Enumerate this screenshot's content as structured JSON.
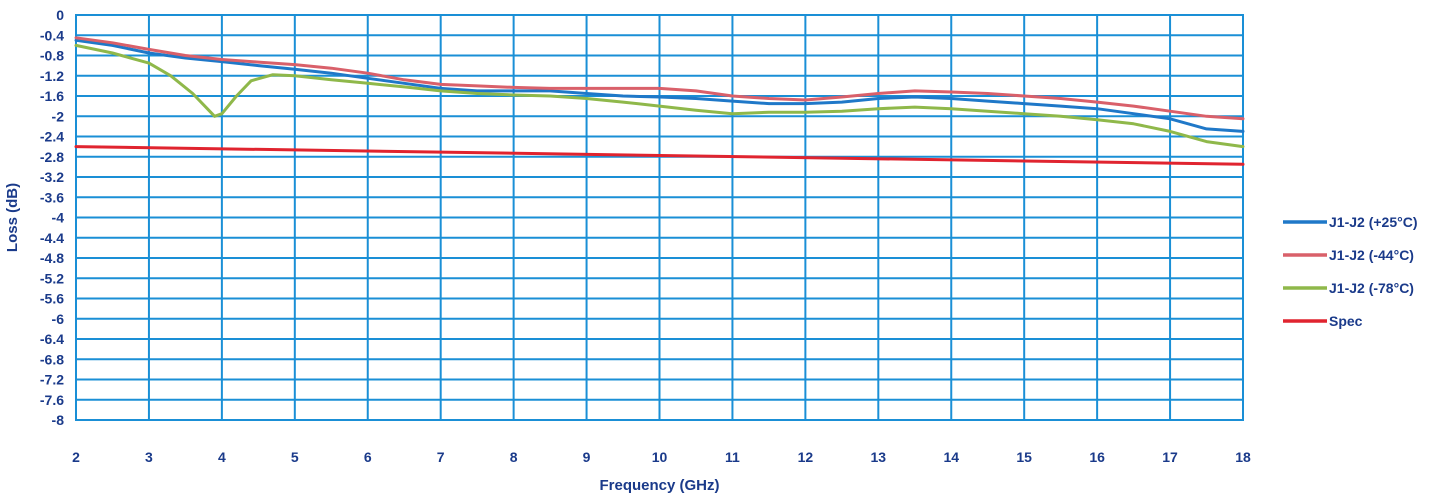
{
  "chart_data": {
    "type": "line",
    "title": "",
    "xlabel": "Frequency (GHz)",
    "ylabel": "Loss (dB)",
    "xlim": [
      2,
      18
    ],
    "ylim": [
      -8,
      0
    ],
    "x_ticks": [
      "2",
      "3",
      "4",
      "5",
      "6",
      "7",
      "8",
      "9",
      "10",
      "11",
      "12",
      "13",
      "14",
      "15",
      "16",
      "17",
      "18"
    ],
    "y_ticks": [
      "0",
      "-0.4",
      "-0.8",
      "-1.2",
      "-1.6",
      "-2",
      "-2.4",
      "-2.8",
      "-3.2",
      "-3.6",
      "-4",
      "-4.4",
      "-4.8",
      "-5.2",
      "-5.6",
      "-6",
      "-6.4",
      "-6.8",
      "-7.2",
      "-7.6",
      "-8"
    ],
    "grid": true,
    "legend_position": "right",
    "series": [
      {
        "name": "J1-J2 (+25°C)",
        "color": "#1f78c8",
        "x": [
          2,
          2.5,
          3,
          3.5,
          4,
          4.5,
          5,
          5.5,
          6,
          6.5,
          7,
          7.5,
          8,
          8.5,
          9,
          9.5,
          10,
          10.5,
          11,
          11.5,
          12,
          12.5,
          13,
          13.5,
          14,
          14.5,
          15,
          15.5,
          16,
          16.5,
          17,
          17.5,
          18
        ],
        "y": [
          -0.5,
          -0.6,
          -0.75,
          -0.85,
          -0.92,
          -1.0,
          -1.07,
          -1.15,
          -1.25,
          -1.35,
          -1.45,
          -1.5,
          -1.5,
          -1.5,
          -1.55,
          -1.6,
          -1.62,
          -1.65,
          -1.7,
          -1.75,
          -1.75,
          -1.72,
          -1.65,
          -1.62,
          -1.65,
          -1.7,
          -1.75,
          -1.8,
          -1.85,
          -1.95,
          -2.05,
          -2.25,
          -2.3
        ]
      },
      {
        "name": "J1-J2 (-44°C)",
        "color": "#d9606a",
        "x": [
          2,
          2.5,
          3,
          3.5,
          4,
          4.5,
          5,
          5.5,
          6,
          6.5,
          7,
          7.5,
          8,
          8.5,
          9,
          9.5,
          10,
          10.5,
          11,
          11.5,
          12,
          12.5,
          13,
          13.5,
          14,
          14.5,
          15,
          15.5,
          16,
          16.5,
          17,
          17.5,
          18
        ],
        "y": [
          -0.45,
          -0.55,
          -0.68,
          -0.8,
          -0.88,
          -0.93,
          -0.98,
          -1.05,
          -1.15,
          -1.28,
          -1.37,
          -1.4,
          -1.43,
          -1.45,
          -1.45,
          -1.45,
          -1.45,
          -1.5,
          -1.6,
          -1.65,
          -1.68,
          -1.62,
          -1.55,
          -1.5,
          -1.52,
          -1.55,
          -1.6,
          -1.65,
          -1.72,
          -1.8,
          -1.9,
          -2.0,
          -2.05
        ]
      },
      {
        "name": "J1-J2 (-78°C)",
        "color": "#8fb84a",
        "x": [
          2,
          2.5,
          3,
          3.3,
          3.6,
          3.8,
          3.9,
          4.0,
          4.2,
          4.4,
          4.7,
          5,
          5.5,
          6,
          6.5,
          7,
          7.5,
          8,
          8.5,
          9,
          9.5,
          10,
          10.5,
          11,
          11.5,
          12,
          12.5,
          13,
          13.5,
          14,
          14.5,
          15,
          15.5,
          16,
          16.5,
          17,
          17.5,
          18
        ],
        "y": [
          -0.6,
          -0.75,
          -0.95,
          -1.2,
          -1.55,
          -1.85,
          -2.0,
          -1.95,
          -1.6,
          -1.3,
          -1.18,
          -1.2,
          -1.28,
          -1.35,
          -1.42,
          -1.5,
          -1.55,
          -1.58,
          -1.6,
          -1.65,
          -1.72,
          -1.8,
          -1.88,
          -1.95,
          -1.92,
          -1.92,
          -1.9,
          -1.85,
          -1.82,
          -1.85,
          -1.9,
          -1.95,
          -2.0,
          -2.07,
          -2.15,
          -2.3,
          -2.5,
          -2.6
        ]
      },
      {
        "name": "Spec",
        "color": "#e0242f",
        "x": [
          2,
          18
        ],
        "y": [
          -2.6,
          -2.95
        ]
      }
    ]
  }
}
